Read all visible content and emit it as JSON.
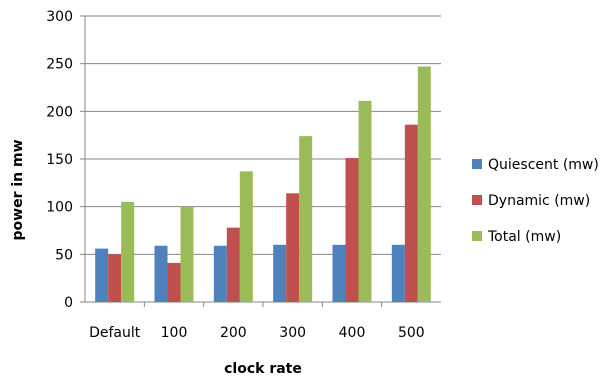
{
  "chart_data": {
    "type": "bar",
    "title": "",
    "xlabel": "clock rate",
    "ylabel": "power in mw",
    "categories": [
      "Default",
      "100",
      "200",
      "300",
      "400",
      "500"
    ],
    "ylim": [
      0,
      300
    ],
    "yticks": [
      "0",
      "50",
      "100",
      "150",
      "200",
      "250",
      "300"
    ],
    "grid": true,
    "legend_position": "right",
    "series": [
      {
        "name": "Quiescent (mw)",
        "color": "#4f81bd",
        "values": [
          56,
          59,
          59,
          60,
          60,
          60
        ]
      },
      {
        "name": "Dynamic (mw)",
        "color": "#c0504d",
        "values": [
          50,
          41,
          78,
          114,
          151,
          186
        ]
      },
      {
        "name": "Total  (mw)",
        "color": "#9bbb59",
        "values": [
          105,
          100,
          137,
          174,
          211,
          247
        ]
      }
    ]
  }
}
